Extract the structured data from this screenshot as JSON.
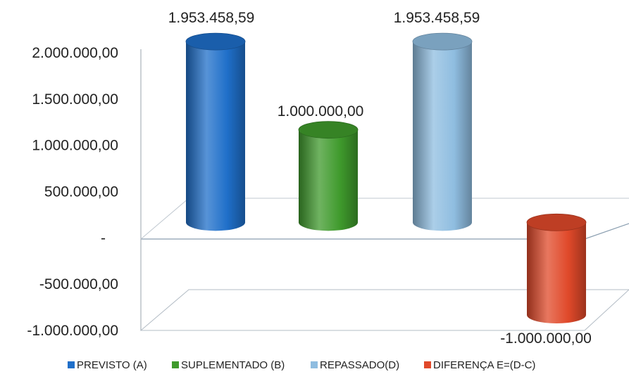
{
  "chart_data": {
    "type": "bar",
    "style": "3d-cylinder",
    "title": "",
    "xlabel": "",
    "ylabel": "",
    "ylim": [
      -1000000,
      2000000
    ],
    "y_ticks": [
      "2.000.000,00",
      "1.500.000,00",
      "1.000.000,00",
      "500.000,00",
      "-",
      "-500.000,00",
      "-1.000.000,00"
    ],
    "grid": false,
    "legend_position": "bottom",
    "series": [
      {
        "name": "PREVISTO (A)",
        "value": 1953458.59,
        "label": "1.953.458,59",
        "color": "#1f6fc9"
      },
      {
        "name": "SUPLEMENTADO (B)",
        "value": 1000000,
        "label": "1.000.000,00",
        "color": "#3f9a2c"
      },
      {
        "name": "REPASSADO(D)",
        "value": 1953458.59,
        "label": "1.953.458,59",
        "color": "#8fbde0"
      },
      {
        "name": "DIFERENÇA E=(D-C)",
        "value": -1000000,
        "label": "-1.000.000,00",
        "color": "#e0492a"
      }
    ]
  }
}
